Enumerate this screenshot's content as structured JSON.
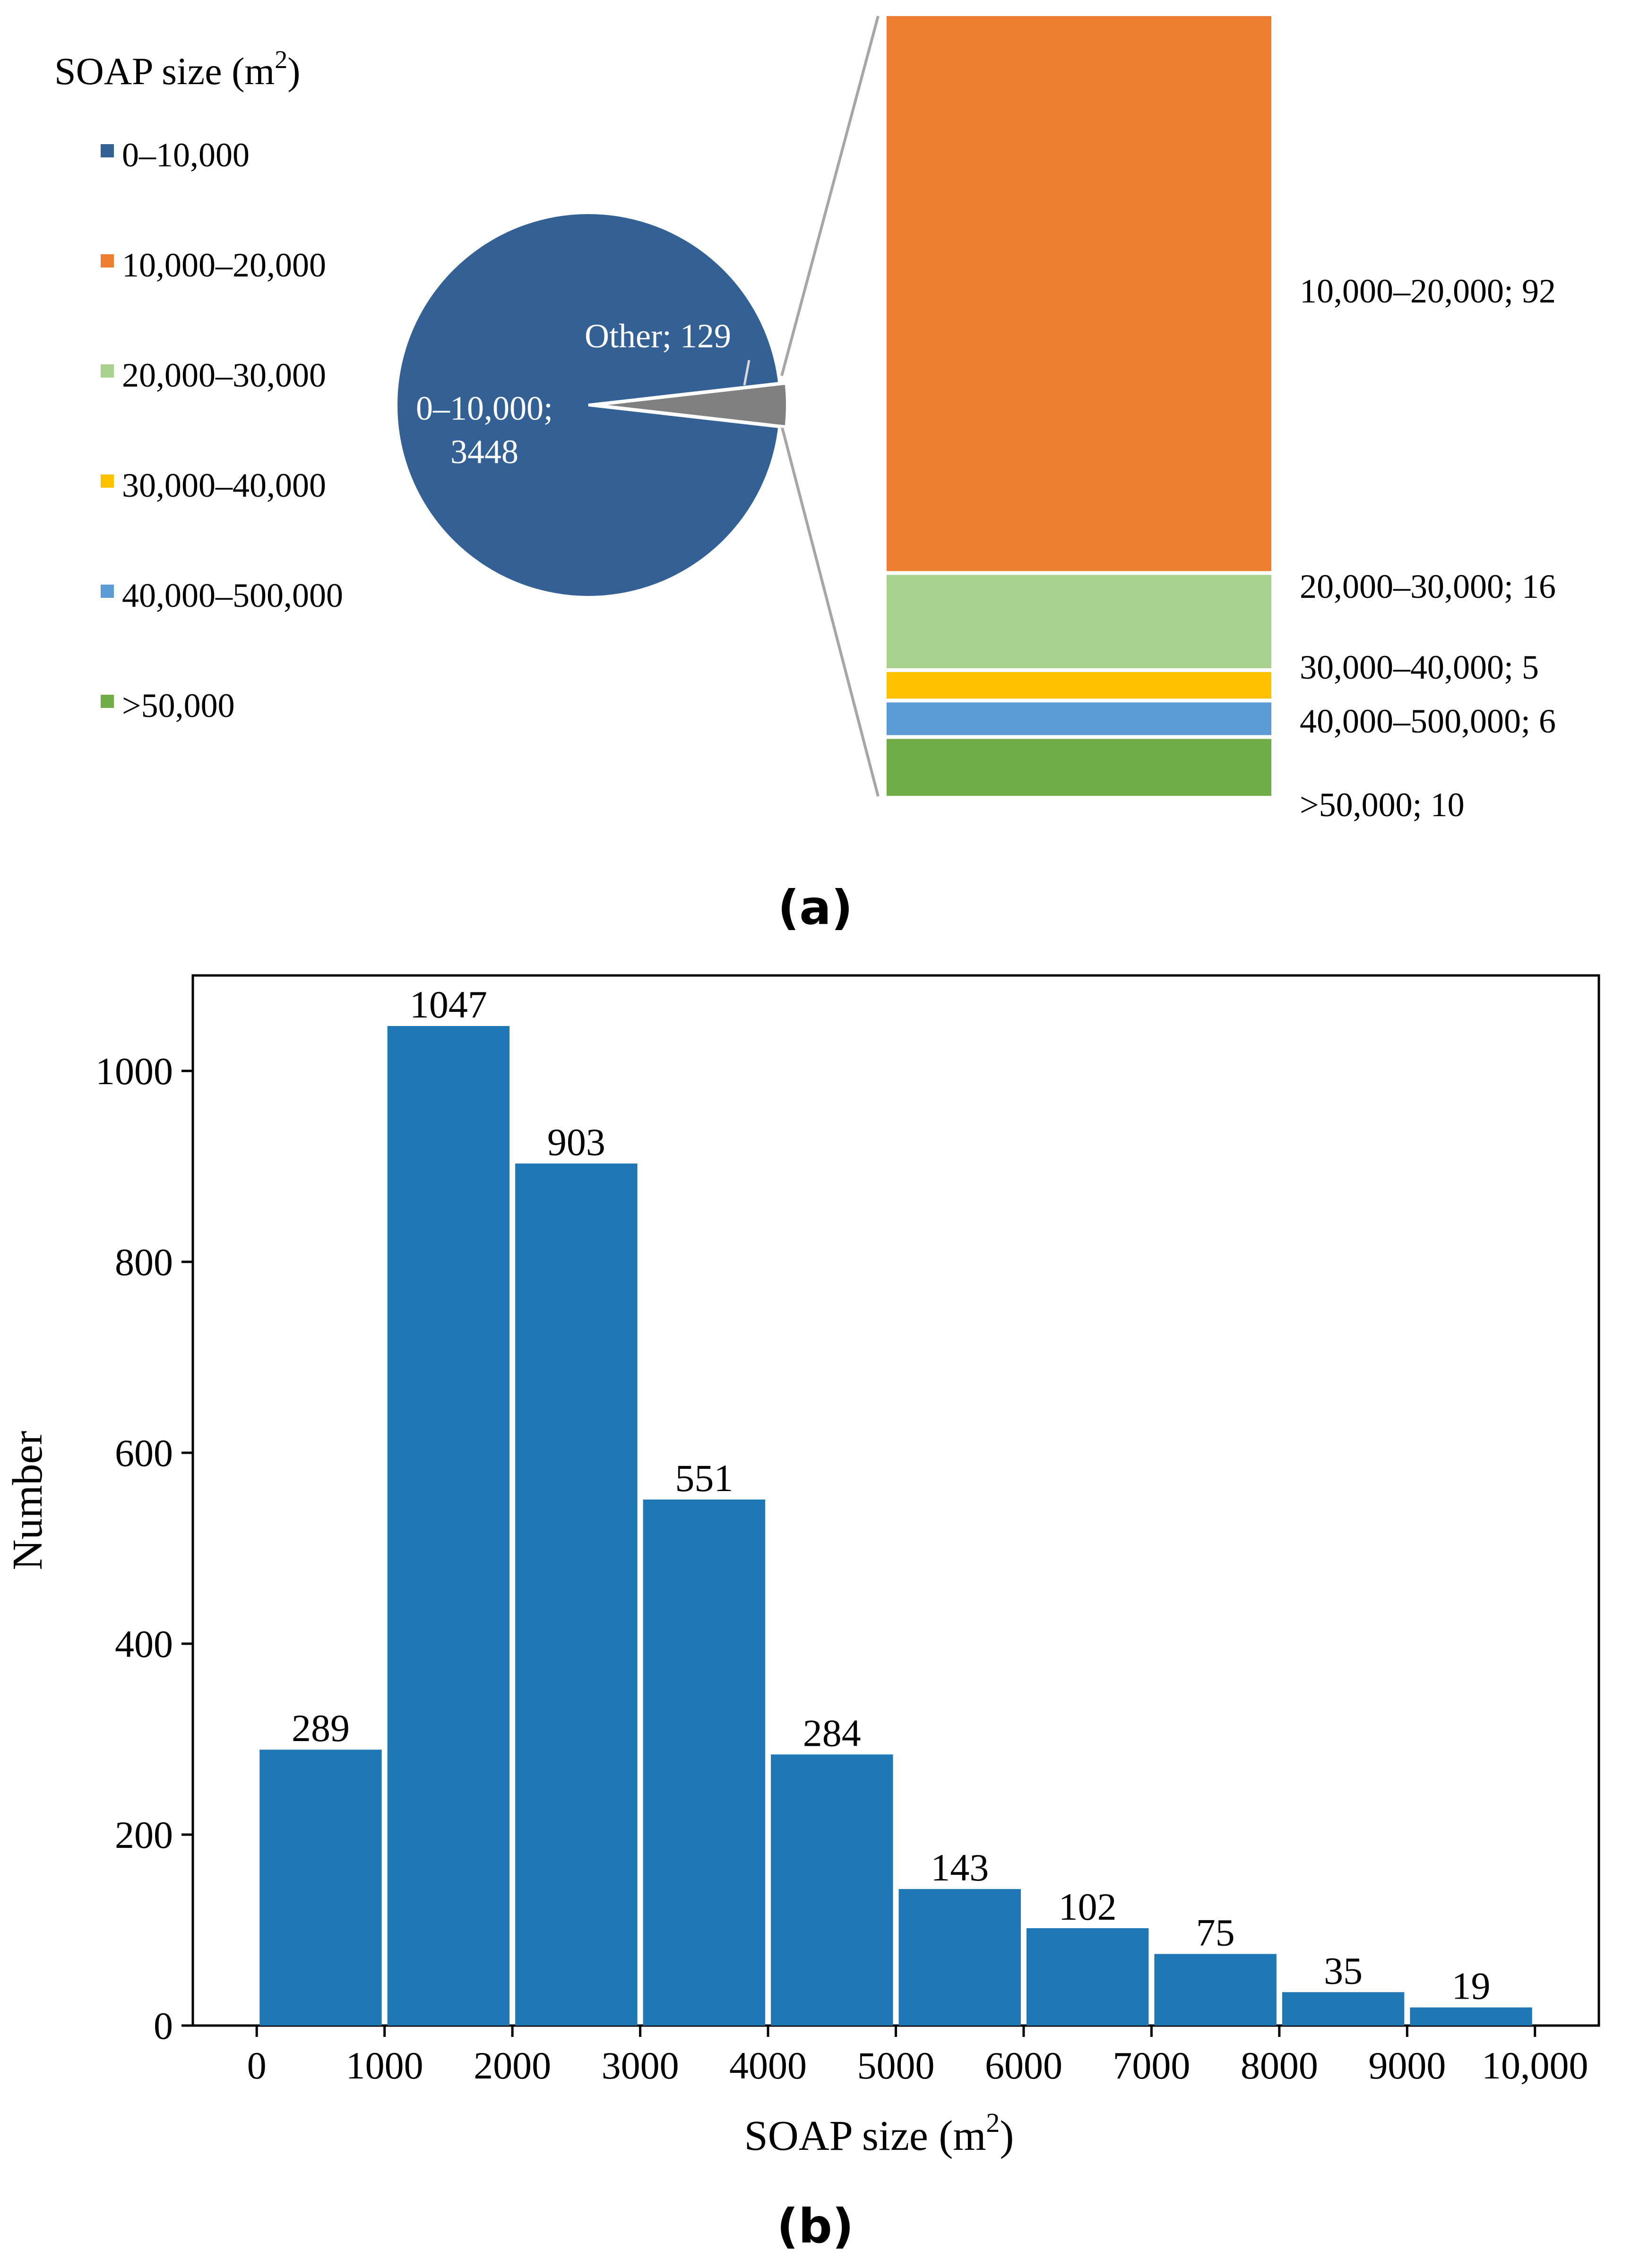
{
  "colors": {
    "pie_main": "#336196",
    "pie_other": "#808080",
    "c_10_20": "#ED7D31",
    "c_20_30": "#A9D18E",
    "c_30_40": "#FFC000",
    "c_40_500": "#5B9BD5",
    "c_50": "#70AD47",
    "bar": "#1F77B4",
    "connector": "#A6A6A6"
  },
  "panel_a": {
    "legend_title": "SOAP size (m",
    "legend_title_sup": "2",
    "legend_title_close": ")",
    "legend": [
      "0–10,000",
      "10,000–20,000",
      "20,000–30,000",
      "30,000–40,000",
      "40,000–500,000",
      ">50,000"
    ],
    "pie_label_main_line1": "0–10,000;",
    "pie_label_main_line2": "3448",
    "pie_label_other": "Other; 129",
    "caption": "(a)"
  },
  "panel_b": {
    "caption": "(b)"
  },
  "chart_data": [
    {
      "type": "pie",
      "title": "SOAP size (m2)",
      "slices": [
        {
          "label": "0–10,000",
          "value": 3448
        },
        {
          "label": "Other",
          "value": 129
        }
      ],
      "breakdown_of": "Other",
      "breakdown": [
        {
          "label": "10,000–20,000",
          "value": 92,
          "text": "10,000–20,000; 92"
        },
        {
          "label": "20,000–30,000",
          "value": 16,
          "text": "20,000–30,000; 16"
        },
        {
          "label": "30,000–40,000",
          "value": 5,
          "text": "30,000–40,000; 5"
        },
        {
          "label": "40,000–500,000",
          "value": 6,
          "text": "40,000–500,000; 6"
        },
        {
          "label": ">50,000",
          "value": 10,
          "text": ">50,000; 10"
        }
      ]
    },
    {
      "type": "bar",
      "bin_edges": [
        0,
        1000,
        2000,
        3000,
        4000,
        5000,
        6000,
        7000,
        8000,
        9000,
        10000
      ],
      "values": [
        289,
        1047,
        903,
        551,
        284,
        143,
        102,
        75,
        35,
        19
      ],
      "x_tick_labels": [
        "0",
        "1000",
        "2000",
        "3000",
        "4000",
        "5000",
        "6000",
        "7000",
        "8000",
        "9000",
        "10,000"
      ],
      "y_ticks": [
        0,
        200,
        400,
        600,
        800,
        1000
      ],
      "xlim": [
        -500,
        10500
      ],
      "ylim": [
        0,
        1100
      ],
      "xlabel": "SOAP size (m",
      "xlabel_sup": "2",
      "xlabel_close": ")",
      "ylabel": "Number",
      "grid": false
    }
  ]
}
